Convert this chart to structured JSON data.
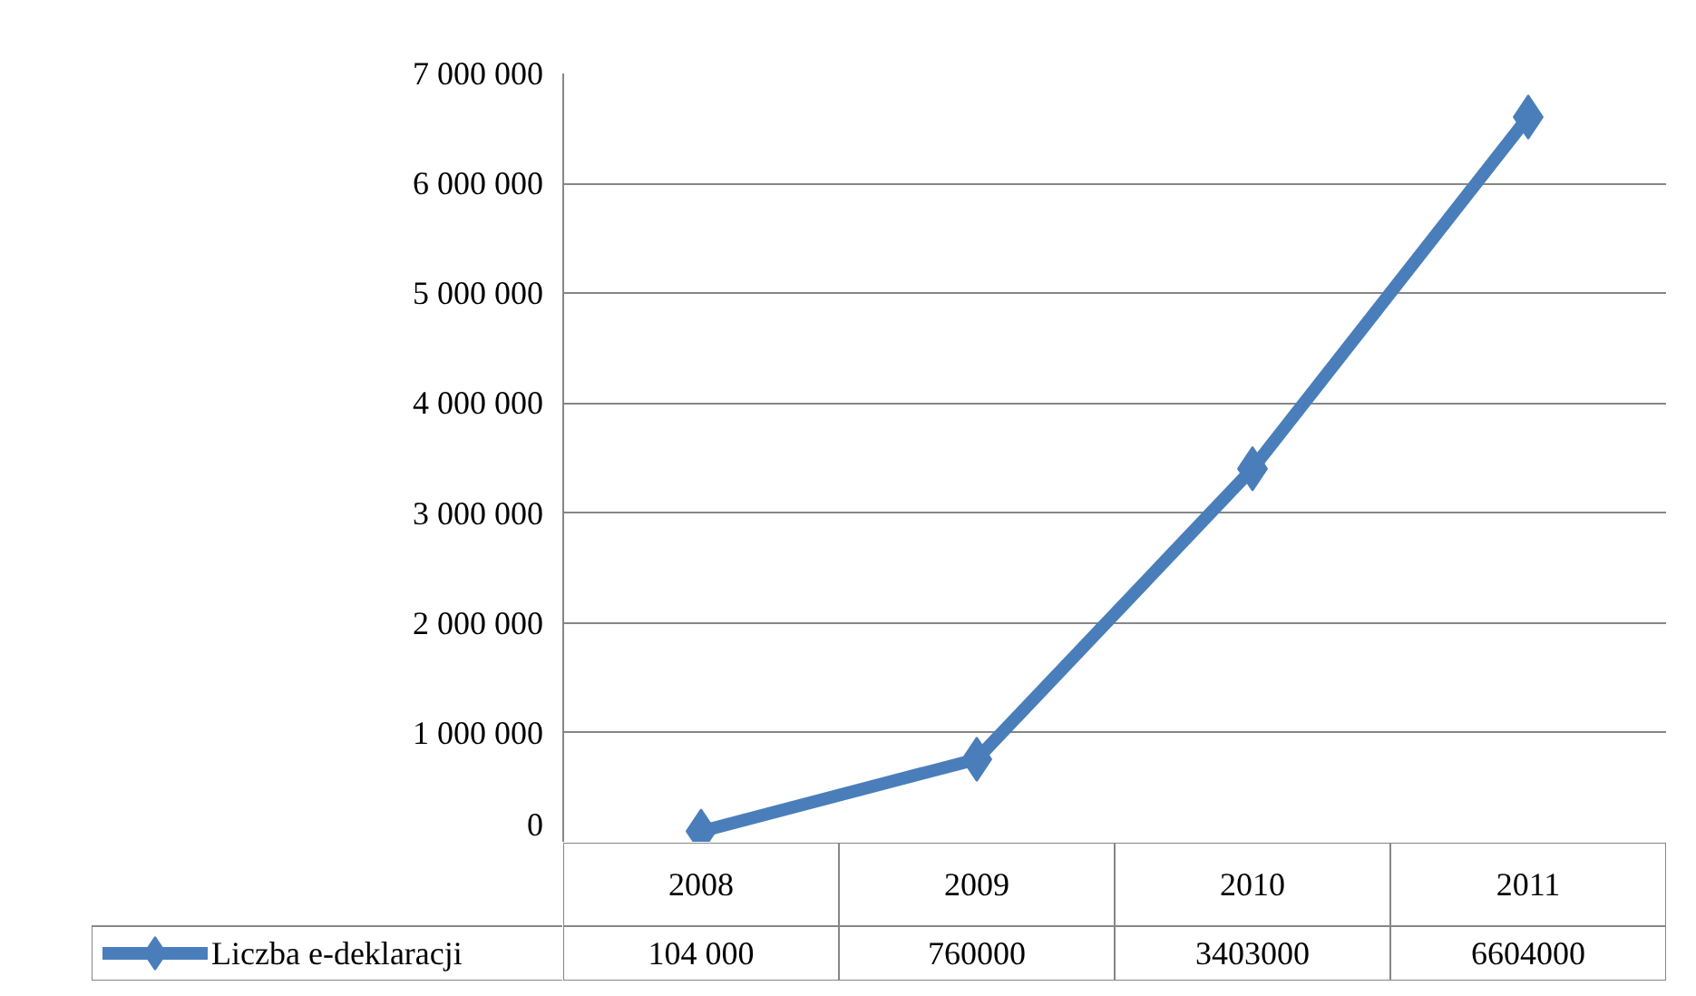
{
  "chart_data": {
    "type": "line",
    "categories": [
      "2008",
      "2009",
      "2010",
      "2011"
    ],
    "series": [
      {
        "name": "Liczba e-deklaracji",
        "color": "#4a7ebb",
        "values": [
          104000,
          760000,
          3403000,
          6604000
        ],
        "value_labels": [
          "104 000",
          "760000",
          "3403000",
          "6604000"
        ]
      }
    ],
    "ylim": [
      0,
      7000000
    ],
    "yticks": [
      {
        "value": 0,
        "label": "0"
      },
      {
        "value": 1000000,
        "label": "1 000 000"
      },
      {
        "value": 2000000,
        "label": "2 000 000"
      },
      {
        "value": 3000000,
        "label": "3 000 000"
      },
      {
        "value": 4000000,
        "label": "4 000 000"
      },
      {
        "value": 5000000,
        "label": "5 000 000"
      },
      {
        "value": 6000000,
        "label": "6 000 000"
      },
      {
        "value": 7000000,
        "label": "7 000 000"
      }
    ],
    "grid": "y",
    "legend": "bottom",
    "marker": "diamond",
    "line_style": "solid"
  }
}
